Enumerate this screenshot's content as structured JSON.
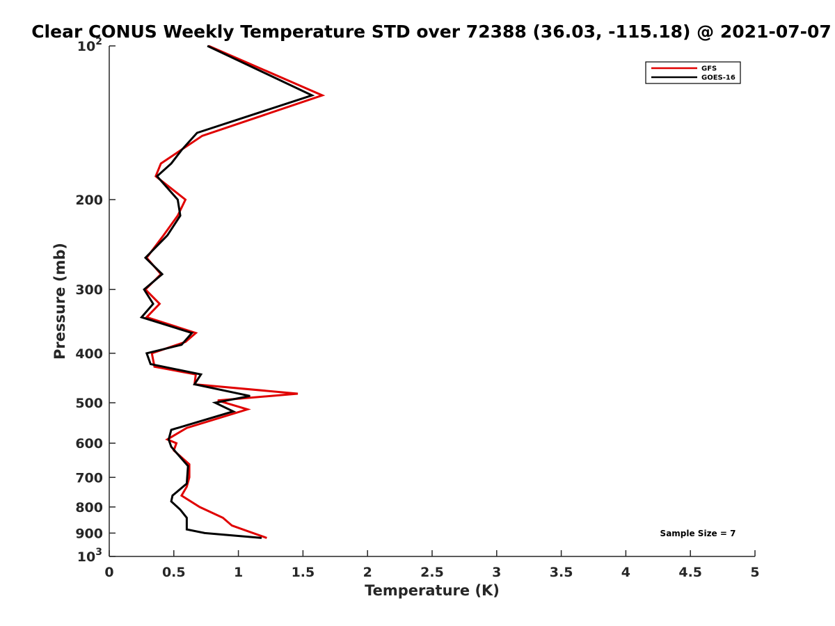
{
  "chart_data": {
    "type": "line",
    "title": "Clear CONUS Weekly Temperature STD over 72388 (36.03, -115.18) @ 2021-07-07",
    "xlabel": "Temperature (K)",
    "ylabel": "Pressure (mb)",
    "xlim": [
      0,
      5
    ],
    "ylim": [
      100,
      1000
    ],
    "y_scale": "log",
    "y_reversed": true,
    "grid": false,
    "legend_position": "top-right",
    "x_ticks": [
      "0",
      "0.5",
      "1",
      "1.5",
      "2",
      "2.5",
      "3",
      "3.5",
      "4",
      "4.5",
      "5"
    ],
    "y_ticks": [
      {
        "value": 100,
        "base": "10",
        "exp": "2"
      },
      {
        "value": 200,
        "label": "200"
      },
      {
        "value": 300,
        "label": "300"
      },
      {
        "value": 400,
        "label": "400"
      },
      {
        "value": 500,
        "label": "500"
      },
      {
        "value": 600,
        "label": "600"
      },
      {
        "value": 700,
        "label": "700"
      },
      {
        "value": 800,
        "label": "800"
      },
      {
        "value": 900,
        "label": "900"
      },
      {
        "value": 1000,
        "base": "10",
        "exp": "3"
      }
    ],
    "annotation": "Sample Size = 7",
    "series": [
      {
        "name": "GFS",
        "color": "#e00000",
        "points": [
          [
            0.77,
            100
          ],
          [
            1.65,
            125
          ],
          [
            0.72,
            150
          ],
          [
            0.4,
            170
          ],
          [
            0.36,
            180
          ],
          [
            0.59,
            200
          ],
          [
            0.53,
            215
          ],
          [
            0.42,
            235
          ],
          [
            0.29,
            260
          ],
          [
            0.4,
            280
          ],
          [
            0.28,
            300
          ],
          [
            0.39,
            320
          ],
          [
            0.29,
            340
          ],
          [
            0.67,
            365
          ],
          [
            0.59,
            380
          ],
          [
            0.33,
            400
          ],
          [
            0.35,
            425
          ],
          [
            0.67,
            440
          ],
          [
            0.66,
            460
          ],
          [
            1.46,
            480
          ],
          [
            0.84,
            495
          ],
          [
            1.07,
            515
          ],
          [
            0.6,
            560
          ],
          [
            0.45,
            590
          ],
          [
            0.52,
            600
          ],
          [
            0.5,
            620
          ],
          [
            0.62,
            660
          ],
          [
            0.62,
            700
          ],
          [
            0.6,
            730
          ],
          [
            0.56,
            760
          ],
          [
            0.7,
            800
          ],
          [
            0.88,
            840
          ],
          [
            0.95,
            870
          ],
          [
            1.22,
            920
          ]
        ]
      },
      {
        "name": "GOES-16",
        "color": "#000000",
        "points": [
          [
            0.76,
            100
          ],
          [
            1.57,
            125
          ],
          [
            0.68,
            148
          ],
          [
            0.56,
            160
          ],
          [
            0.48,
            170
          ],
          [
            0.37,
            180
          ],
          [
            0.53,
            200
          ],
          [
            0.55,
            215
          ],
          [
            0.45,
            235
          ],
          [
            0.28,
            260
          ],
          [
            0.41,
            280
          ],
          [
            0.27,
            300
          ],
          [
            0.34,
            320
          ],
          [
            0.25,
            340
          ],
          [
            0.64,
            365
          ],
          [
            0.56,
            385
          ],
          [
            0.29,
            400
          ],
          [
            0.32,
            420
          ],
          [
            0.71,
            440
          ],
          [
            0.66,
            460
          ],
          [
            1.09,
            485
          ],
          [
            0.82,
            500
          ],
          [
            0.96,
            520
          ],
          [
            0.48,
            565
          ],
          [
            0.46,
            590
          ],
          [
            0.48,
            610
          ],
          [
            0.61,
            665
          ],
          [
            0.6,
            720
          ],
          [
            0.49,
            760
          ],
          [
            0.48,
            780
          ],
          [
            0.55,
            810
          ],
          [
            0.6,
            840
          ],
          [
            0.6,
            885
          ],
          [
            0.74,
            900
          ],
          [
            1.18,
            920
          ]
        ]
      }
    ]
  }
}
